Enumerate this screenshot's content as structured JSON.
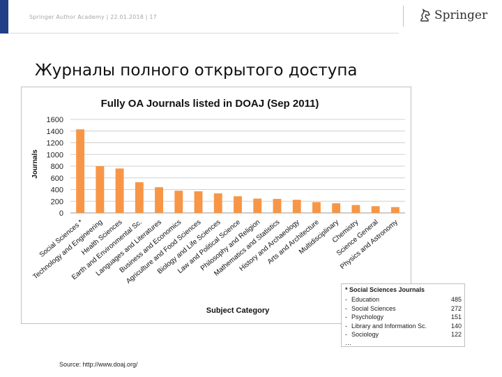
{
  "header": {
    "text": "Springer Author Academy | 22.01.2018 | 17",
    "logo_text": "Springer"
  },
  "slide": {
    "title": "Журналы полного открытого доступа",
    "source": "Source: http://www.doaj.org/"
  },
  "legend": {
    "title": "* Social Sciences Journals",
    "items": [
      {
        "label": "Education",
        "value": "485"
      },
      {
        "label": "Social Sciences",
        "value": "272"
      },
      {
        "label": "Psychology",
        "value": "151"
      },
      {
        "label": "Library and Information Sc.",
        "value": "140"
      },
      {
        "label": "Sociology",
        "value": "122"
      }
    ],
    "more": "…"
  },
  "chart_data": {
    "type": "bar",
    "title": "Fully OA Journals listed in DOAJ (Sep 2011)",
    "xlabel": "Subject Category",
    "ylabel": "Journals",
    "ylim": [
      0,
      1600
    ],
    "yticks": [
      0,
      200,
      400,
      600,
      800,
      1000,
      1200,
      1400,
      1600
    ],
    "grid": true,
    "bar_color": "#f79646",
    "categories": [
      "Social Sciences *",
      "Technology and Engineering",
      "Health Sciences",
      "Earth and Environmental Sc.",
      "Languages and Literatures",
      "Business and Economics",
      "Agriculture and Food Sciences",
      "Biology and Life Sciences",
      "Law and Political Science",
      "Philosophy and Religion",
      "Mathematics and Statistics",
      "History and Archaeology",
      "Arts and Architecture",
      "Multidisciplinary",
      "Chemistry",
      "Science General",
      "Physics and Astronomy"
    ],
    "values": [
      1430,
      800,
      760,
      525,
      440,
      380,
      370,
      335,
      285,
      245,
      240,
      225,
      185,
      165,
      135,
      115,
      100
    ]
  }
}
